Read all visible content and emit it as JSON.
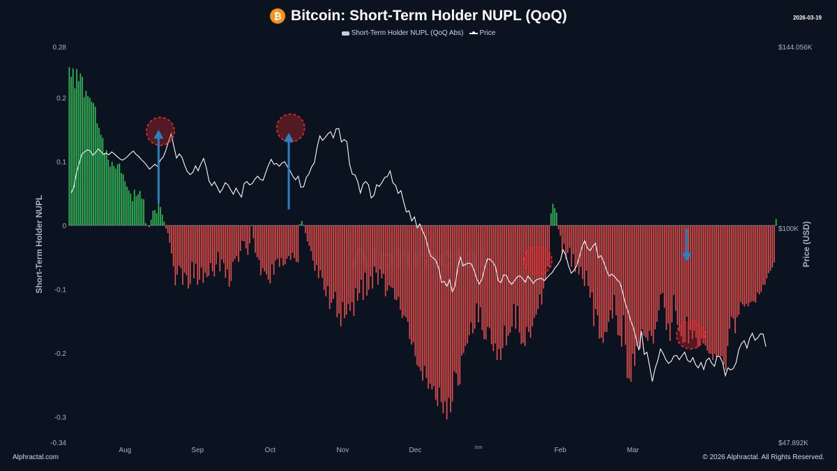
{
  "header": {
    "title": "Bitcoin: Short-Term Holder NUPL (QoQ)",
    "icon_glyph": "₿",
    "date": "2026-03-19"
  },
  "legend": {
    "bar_label": "Short-Term Holder NUPL (QoQ Abs)",
    "line_label": "Price"
  },
  "footer": {
    "source": "Alphractal.com",
    "copyright": "© 2026 Alphractal. All Rights Reserved."
  },
  "watermark": "Alphractal",
  "colors": {
    "background": "#0b1220",
    "positive_bar": "#2fbf5b",
    "negative_bar": "#e8504f",
    "price_line": "#ffffff",
    "highlight_circle": "#d92b2b",
    "arrow": "#2d7fc1",
    "bitcoin": "#f7931a"
  },
  "chart_data": {
    "type": "bar+line",
    "title": "Bitcoin: Short-Term Holder NUPL (QoQ)",
    "ylabel": "Short-Term Holder NUPL",
    "y2label": "Price (USD)",
    "ylim": [
      -0.34,
      0.28
    ],
    "y_ticks": [
      0.28,
      0.2,
      0.1,
      0,
      -0.1,
      -0.2,
      -0.3,
      -0.34
    ],
    "y_tick_labels": [
      "0.28",
      "0.2",
      "0.1",
      "0",
      "-0.1",
      "-0.2",
      "-0.3",
      "-0.34"
    ],
    "y2lim": [
      47892,
      144056
    ],
    "y2_tick_labels": [
      "$144.056K",
      "$100K",
      "$47.892K"
    ],
    "y2_tick_values": [
      144056,
      100000,
      47892
    ],
    "x_tick_labels": [
      "Aug",
      "Sep",
      "Oct",
      "Nov",
      "Dec",
      "2026",
      "Jan",
      "Feb",
      "Mar"
    ],
    "x_tick_index": [
      30,
      69,
      108,
      147,
      186,
      220,
      225,
      264,
      303
    ],
    "x_tick_small": [
      false,
      false,
      false,
      false,
      false,
      true,
      false,
      false,
      false
    ],
    "x_tick_show_label": [
      true,
      true,
      true,
      true,
      true,
      true,
      false,
      true,
      true
    ],
    "nupl_qoq_abs": [
      0.248,
      0.233,
      0.246,
      0.215,
      0.245,
      0.226,
      0.238,
      0.233,
      0.201,
      0.211,
      0.203,
      0.2,
      0.194,
      0.192,
      0.186,
      0.16,
      0.153,
      0.142,
      0.137,
      0.114,
      0.118,
      0.103,
      0.092,
      0.1,
      0.093,
      0.089,
      0.096,
      0.097,
      0.082,
      0.08,
      0.069,
      0.061,
      0.055,
      0.05,
      0.038,
      0.056,
      0.046,
      0.049,
      0.054,
      0.042,
      0.041,
      0.004,
      0.0,
      -0.003,
      0.009,
      0.023,
      0.024,
      0.019,
      0.036,
      0.029,
      0.017,
      0.006,
      -0.005,
      -0.012,
      -0.027,
      -0.044,
      -0.064,
      -0.094,
      -0.077,
      -0.063,
      -0.067,
      -0.093,
      -0.074,
      -0.078,
      -0.099,
      -0.092,
      -0.057,
      -0.083,
      -0.06,
      -0.093,
      -0.085,
      -0.066,
      -0.09,
      -0.074,
      -0.081,
      -0.079,
      -0.059,
      -0.072,
      -0.08,
      -0.061,
      -0.042,
      -0.072,
      -0.053,
      -0.059,
      -0.082,
      -0.069,
      -0.096,
      -0.087,
      -0.057,
      -0.053,
      -0.048,
      -0.057,
      -0.04,
      -0.024,
      -0.025,
      -0.036,
      -0.046,
      -0.028,
      -0.001,
      -0.02,
      -0.043,
      -0.05,
      -0.054,
      -0.078,
      -0.067,
      -0.072,
      -0.077,
      -0.085,
      -0.091,
      -0.061,
      -0.077,
      -0.055,
      -0.052,
      -0.065,
      -0.051,
      -0.063,
      -0.061,
      -0.052,
      -0.048,
      -0.054,
      -0.043,
      -0.051,
      -0.057,
      -0.058,
      0.002,
      0.007,
      0.001,
      -0.012,
      -0.025,
      -0.032,
      -0.04,
      -0.055,
      -0.071,
      -0.062,
      -0.083,
      -0.07,
      -0.082,
      -0.101,
      -0.111,
      -0.095,
      -0.131,
      -0.121,
      -0.115,
      -0.104,
      -0.144,
      -0.138,
      -0.158,
      -0.12,
      -0.145,
      -0.14,
      -0.123,
      -0.134,
      -0.12,
      -0.142,
      -0.098,
      -0.118,
      -0.106,
      -0.085,
      -0.117,
      -0.074,
      -0.11,
      -0.101,
      -0.08,
      -0.099,
      -0.064,
      -0.074,
      -0.093,
      -0.069,
      -0.083,
      -0.076,
      -0.111,
      -0.102,
      -0.094,
      -0.097,
      -0.098,
      -0.116,
      -0.117,
      -0.112,
      -0.132,
      -0.145,
      -0.141,
      -0.144,
      -0.151,
      -0.178,
      -0.187,
      -0.183,
      -0.205,
      -0.219,
      -0.222,
      -0.228,
      -0.243,
      -0.22,
      -0.239,
      -0.256,
      -0.248,
      -0.257,
      -0.252,
      -0.273,
      -0.283,
      -0.254,
      -0.277,
      -0.294,
      -0.276,
      -0.304,
      -0.27,
      -0.293,
      -0.276,
      -0.229,
      -0.232,
      -0.251,
      -0.249,
      -0.204,
      -0.2,
      -0.189,
      -0.185,
      -0.172,
      -0.152,
      -0.169,
      -0.162,
      -0.122,
      -0.152,
      -0.128,
      -0.164,
      -0.178,
      -0.179,
      -0.159,
      -0.161,
      -0.186,
      -0.197,
      -0.185,
      -0.211,
      -0.194,
      -0.211,
      -0.192,
      -0.157,
      -0.188,
      -0.173,
      -0.168,
      -0.159,
      -0.123,
      -0.162,
      -0.126,
      -0.168,
      -0.186,
      -0.184,
      -0.189,
      -0.159,
      -0.167,
      -0.176,
      -0.158,
      -0.145,
      -0.14,
      -0.131,
      -0.108,
      -0.124,
      -0.099,
      -0.086,
      -0.064,
      -0.065,
      0.019,
      0.034,
      0.027,
      0.02,
      -0.006,
      -0.016,
      -0.044,
      -0.029,
      -0.053,
      -0.043,
      -0.035,
      -0.065,
      -0.045,
      -0.073,
      -0.061,
      -0.077,
      -0.065,
      -0.084,
      -0.095,
      -0.071,
      -0.095,
      -0.113,
      -0.105,
      -0.158,
      -0.131,
      -0.141,
      -0.177,
      -0.176,
      -0.184,
      -0.167,
      -0.167,
      -0.151,
      -0.133,
      -0.146,
      -0.109,
      -0.141,
      -0.172,
      -0.173,
      -0.19,
      -0.141,
      -0.187,
      -0.239,
      -0.24,
      -0.245,
      -0.201,
      -0.22,
      -0.189,
      -0.185,
      -0.193,
      -0.163,
      -0.173,
      -0.176,
      -0.181,
      -0.165,
      -0.173,
      -0.185,
      -0.163,
      -0.151,
      -0.133,
      -0.108,
      -0.106,
      -0.129,
      -0.164,
      -0.154,
      -0.181,
      -0.152,
      -0.109,
      -0.134,
      -0.156,
      -0.166,
      -0.174,
      -0.184,
      -0.183,
      -0.143,
      -0.185,
      -0.164,
      -0.178,
      -0.165,
      -0.176,
      -0.191,
      -0.189,
      -0.177,
      -0.185,
      -0.188,
      -0.196,
      -0.201,
      -0.201,
      -0.211,
      -0.201,
      -0.207,
      -0.204,
      -0.205,
      -0.205,
      -0.218,
      -0.227,
      -0.189,
      -0.162,
      -0.143,
      -0.146,
      -0.169,
      -0.144,
      -0.14,
      -0.12,
      -0.124,
      -0.127,
      -0.123,
      -0.127,
      -0.121,
      -0.119,
      -0.119,
      -0.121,
      -0.105,
      -0.108,
      -0.104,
      -0.093,
      -0.093,
      -0.083,
      -0.075,
      -0.071,
      -0.066,
      -0.058,
      0.01
    ],
    "price_usd": [
      108500,
      110000,
      113500,
      115800,
      118000,
      118500,
      119000,
      118800,
      117700,
      118300,
      119200,
      118600,
      117900,
      118200,
      117800,
      118500,
      118000,
      117400,
      116800,
      116500,
      116900,
      117500,
      118200,
      118700,
      117900,
      117400,
      116600,
      116000,
      115200,
      114300,
      114900,
      115500,
      114900,
      116500,
      117200,
      118800,
      121000,
      122900,
      119800,
      117000,
      118000,
      117200,
      115200,
      113700,
      113000,
      113500,
      115100,
      113900,
      115600,
      116900,
      114700,
      111500,
      110300,
      111200,
      110000,
      108600,
      109500,
      111000,
      110500,
      109300,
      108200,
      109700,
      108500,
      107500,
      110800,
      111300,
      110500,
      110800,
      111900,
      112600,
      111800,
      111600,
      113500,
      115300,
      116700,
      115500,
      115700,
      115000,
      115800,
      116100,
      114900,
      113900,
      112600,
      111700,
      112600,
      109900,
      110000,
      112300,
      113200,
      114900,
      115900,
      119700,
      122400,
      121300,
      122000,
      122900,
      123400,
      121900,
      124100,
      124200,
      120900,
      121500,
      121000,
      115500,
      113100,
      112900,
      111300,
      108500,
      110700,
      111300,
      110500,
      107300,
      107900,
      110500,
      110100,
      111100,
      112300,
      112500,
      113900,
      111000,
      110400,
      108400,
      109100,
      106400,
      103900,
      104200,
      101700,
      102700,
      100000,
      101000,
      99300,
      97900,
      95400,
      93200,
      92700,
      92000,
      90200,
      86800,
      87000,
      85800,
      87400,
      84500,
      85900,
      90300,
      92900,
      90800,
      91200,
      91500,
      91300,
      89900,
      87700,
      86400,
      87600,
      90300,
      92500,
      92400,
      91700,
      90500,
      87200,
      86700,
      88600,
      88500,
      87000,
      86300,
      87200,
      88100,
      88400,
      87700,
      86800,
      88300,
      87500,
      86600,
      87400,
      87600,
      87800,
      87200,
      87900,
      88600,
      89200,
      90300,
      91100,
      92200,
      94700,
      93400,
      90800,
      89000,
      89700,
      90800,
      92900,
      95500,
      96900,
      95100,
      94500,
      95600,
      96300,
      92800,
      93300,
      91800,
      89900,
      88300,
      88800,
      88200,
      87400,
      86800,
      84400,
      81700,
      79800,
      77500,
      75800,
      73100,
      70300,
      75000,
      69300,
      69800,
      66400,
      62700,
      65800,
      67800,
      70600,
      69500,
      68000,
      67100,
      67600,
      68900,
      69000,
      68000,
      69000,
      69800,
      67900,
      67400,
      68500,
      66800,
      66000,
      67300,
      65600,
      67800,
      68400,
      67100,
      66400,
      68900,
      68700,
      67300,
      64100,
      66000,
      65500,
      65900,
      67300,
      70400,
      71900,
      72600,
      70800,
      73200,
      74400,
      72700,
      73300,
      74300,
      74200,
      71200
    ],
    "annotations": {
      "highlight_circles": [
        {
          "bar_index": 49,
          "value_usd": 123500
        },
        {
          "bar_index": 119,
          "value_usd": 124300
        },
        {
          "bar_index": 252,
          "value_usd": 92100
        },
        {
          "bar_index": 334,
          "value_usd": 74000
        }
      ],
      "arrows": [
        {
          "bar_index": 48,
          "from_value": 0.035,
          "to_value": 0.148,
          "direction": "up"
        },
        {
          "bar_index": 118,
          "from_value": 0.025,
          "to_value": 0.143,
          "direction": "up"
        },
        {
          "bar_index": 332,
          "from_value": -0.005,
          "to_value": -0.055,
          "direction": "down"
        }
      ]
    }
  }
}
